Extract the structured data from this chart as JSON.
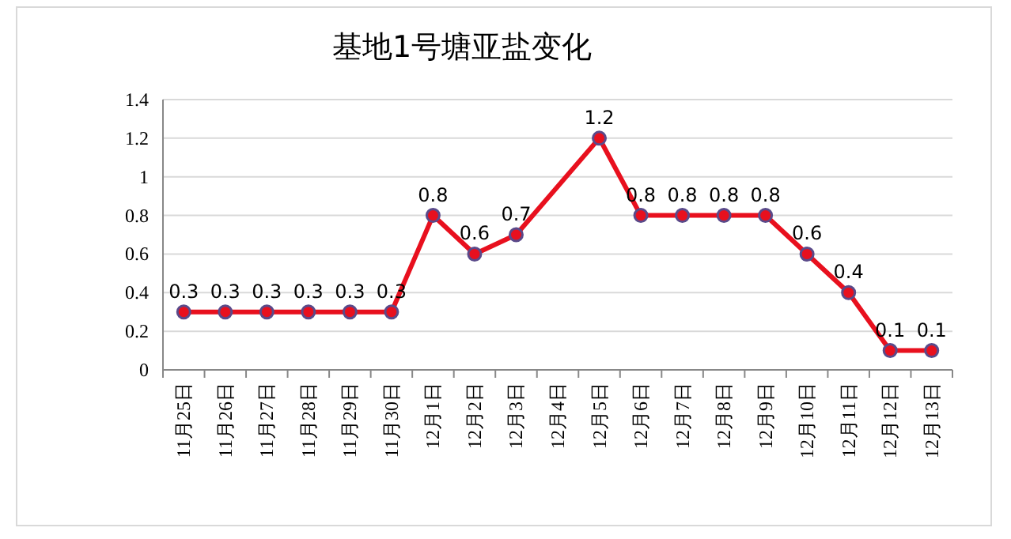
{
  "chart_data": {
    "type": "line",
    "title": "基地1号塘亚盐变化",
    "categories": [
      "11月25日",
      "11月26日",
      "11月27日",
      "11月28日",
      "11月29日",
      "11月30日",
      "12月1日",
      "12月2日",
      "12月3日",
      "12月4日",
      "12月5日",
      "12月6日",
      "12月7日",
      "12月8日",
      "12月9日",
      "12月10日",
      "12月11日",
      "12月12日",
      "12月13日"
    ],
    "series": [
      {
        "color": "#e8101e",
        "values": [
          0.3,
          0.3,
          0.3,
          0.3,
          0.3,
          0.3,
          0.8,
          0.6,
          0.7,
          null,
          1.2,
          0.8,
          0.8,
          0.8,
          0.8,
          0.6,
          0.4,
          0.1,
          0.1
        ]
      }
    ],
    "ylim": [
      0,
      1.4
    ],
    "yticks": [
      0,
      0.2,
      0.4,
      0.6,
      0.8,
      1,
      1.2,
      1.4
    ],
    "grid": "y",
    "marker": "circle",
    "data_labels": true
  }
}
